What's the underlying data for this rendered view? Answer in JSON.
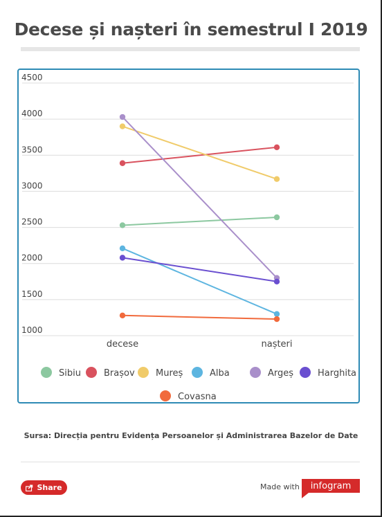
{
  "header": {
    "title": "Decese și nașteri în semestrul I 2019"
  },
  "chart_data": {
    "type": "line",
    "categories": [
      "decese",
      "nașteri"
    ],
    "ylim": [
      1000,
      4500
    ],
    "yticks": [
      1000,
      1500,
      2000,
      2500,
      3000,
      3500,
      4000,
      4500
    ],
    "grid": true,
    "legend_position": "bottom",
    "series": [
      {
        "name": "Sibiu",
        "color": "#8cc8a0",
        "values": [
          2530,
          2640
        ]
      },
      {
        "name": "Brașov",
        "color": "#d9525e",
        "values": [
          3390,
          3610
        ]
      },
      {
        "name": "Mureș",
        "color": "#f0cb6a",
        "values": [
          3900,
          3170
        ]
      },
      {
        "name": "Alba",
        "color": "#5db5e0",
        "values": [
          2210,
          1300
        ]
      },
      {
        "name": "Argeș",
        "color": "#a98fca",
        "values": [
          4030,
          1800
        ]
      },
      {
        "name": "Harghita",
        "color": "#6a4fd0",
        "values": [
          2080,
          1750
        ]
      },
      {
        "name": "Covasna",
        "color": "#f16a3c",
        "values": [
          1280,
          1230
        ]
      }
    ]
  },
  "footer": {
    "source": "Sursa: Direcția pentru Evidența Persoanelor și Administrarea Bazelor de Date",
    "share_label": "Share",
    "made_with": "Made with",
    "brand": "infogram"
  }
}
